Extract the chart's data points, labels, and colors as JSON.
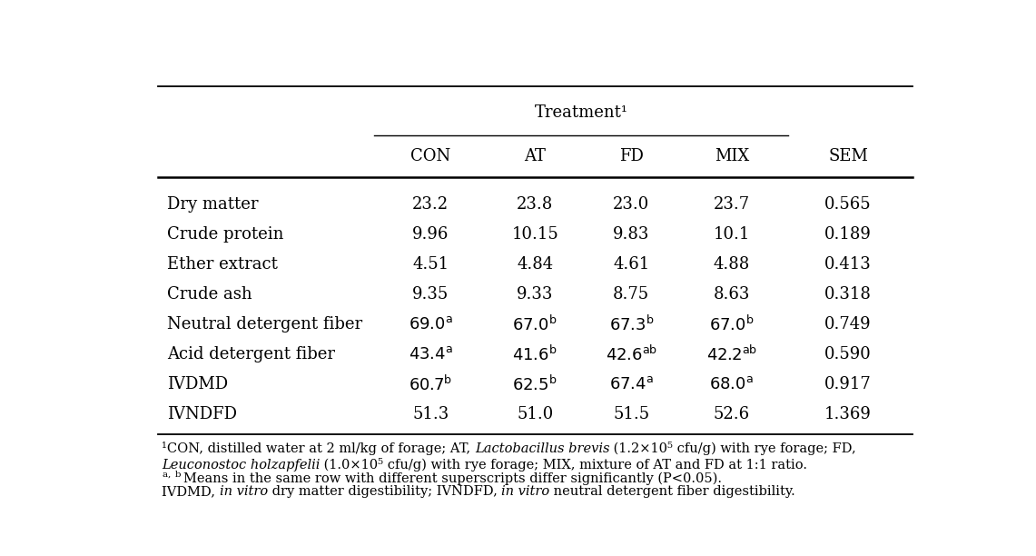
{
  "treatment_header": "Treatment¹",
  "col_labels": [
    "CON",
    "AT",
    "FD",
    "MIX",
    "SEM"
  ],
  "rows": [
    {
      "label": "Dry matter",
      "values": [
        "23.2",
        "23.8",
        "23.0",
        "23.7",
        "0.565"
      ],
      "sups": [
        "",
        "",
        "",
        "",
        ""
      ]
    },
    {
      "label": "Crude protein",
      "values": [
        "9.96",
        "10.15",
        "9.83",
        "10.1",
        "0.189"
      ],
      "sups": [
        "",
        "",
        "",
        "",
        ""
      ]
    },
    {
      "label": "Ether extract",
      "values": [
        "4.51",
        "4.84",
        "4.61",
        "4.88",
        "0.413"
      ],
      "sups": [
        "",
        "",
        "",
        "",
        ""
      ]
    },
    {
      "label": "Crude ash",
      "values": [
        "9.35",
        "9.33",
        "8.75",
        "8.63",
        "0.318"
      ],
      "sups": [
        "",
        "",
        "",
        "",
        ""
      ]
    },
    {
      "label": "Neutral detergent fiber",
      "values": [
        "69.0",
        "67.0",
        "67.3",
        "67.0",
        "0.749"
      ],
      "sups": [
        "a",
        "b",
        "b",
        "b",
        ""
      ]
    },
    {
      "label": "Acid detergent fiber",
      "values": [
        "43.4",
        "41.6",
        "42.6",
        "42.2",
        "0.590"
      ],
      "sups": [
        "a",
        "b",
        "ab",
        "ab",
        ""
      ]
    },
    {
      "label": "IVDMD",
      "values": [
        "60.7",
        "62.5",
        "67.4",
        "68.0",
        "0.917"
      ],
      "sups": [
        "b",
        "b",
        "a",
        "a",
        ""
      ]
    },
    {
      "label": "IVNDFD",
      "values": [
        "51.3",
        "51.0",
        "51.5",
        "52.6",
        "1.369"
      ],
      "sups": [
        "",
        "",
        "",
        "",
        ""
      ]
    }
  ],
  "fn1_pre": "¹CON, distilled water at 2 ml/kg of forage; AT, ",
  "fn1_ital": "Lactobacillus brevis",
  "fn1_post": " (1.2×10⁵ cfu/g) with rye forage; FD,",
  "fn2_ital": "Leuconostoc holzapfelii",
  "fn2_post": " (1.0×10⁵ cfu/g) with rye forage; MIX, mixture of AT and FD at 1:1 ratio.",
  "fn3_pre": "a, b ",
  "fn3_post": "Means in the same row with different superscripts differ significantly (P<0.05).",
  "fn4_pre": "IVDMD, ",
  "fn4_ital1": "in vitro",
  "fn4_mid": " dry matter digestibility; IVNDFD, ",
  "fn4_ital2": "in vitro",
  "fn4_post": " neutral detergent fiber digestibility.",
  "bg_color": "#ffffff",
  "font_size": 13,
  "fn_font_size": 10.5
}
